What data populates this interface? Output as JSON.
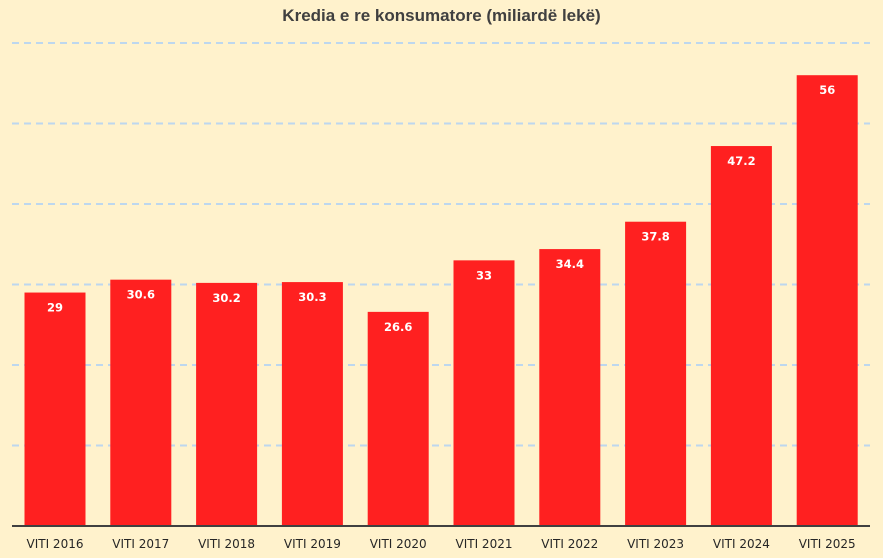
{
  "chart_data": {
    "type": "bar",
    "title": "Kredia e re konsumatore (miliardë lekë)",
    "xlabel": "",
    "ylabel": "",
    "categories": [
      "VITI 2016",
      "VITI 2017",
      "VITI 2018",
      "VITI 2019",
      "VITI 2020",
      "VITI 2021",
      "VITI 2022",
      "VITI 2023",
      "VITI 2024",
      "VITI 2025"
    ],
    "values": [
      29,
      30.6,
      30.2,
      30.3,
      26.6,
      33,
      34.4,
      37.8,
      47.2,
      56
    ],
    "value_labels": [
      "29",
      "30.6",
      "30.2",
      "30.3",
      "26.6",
      "33",
      "34.4",
      "37.8",
      "47.2",
      "56"
    ],
    "ylim": [
      0,
      60
    ],
    "grid": true,
    "y_tick_labels_visible": false,
    "colors": {
      "background": "#fff2cc",
      "bar": "#ff2020",
      "bar_label": "#ffffff",
      "grid": "#bdd7ee",
      "axis": "#404040"
    }
  }
}
